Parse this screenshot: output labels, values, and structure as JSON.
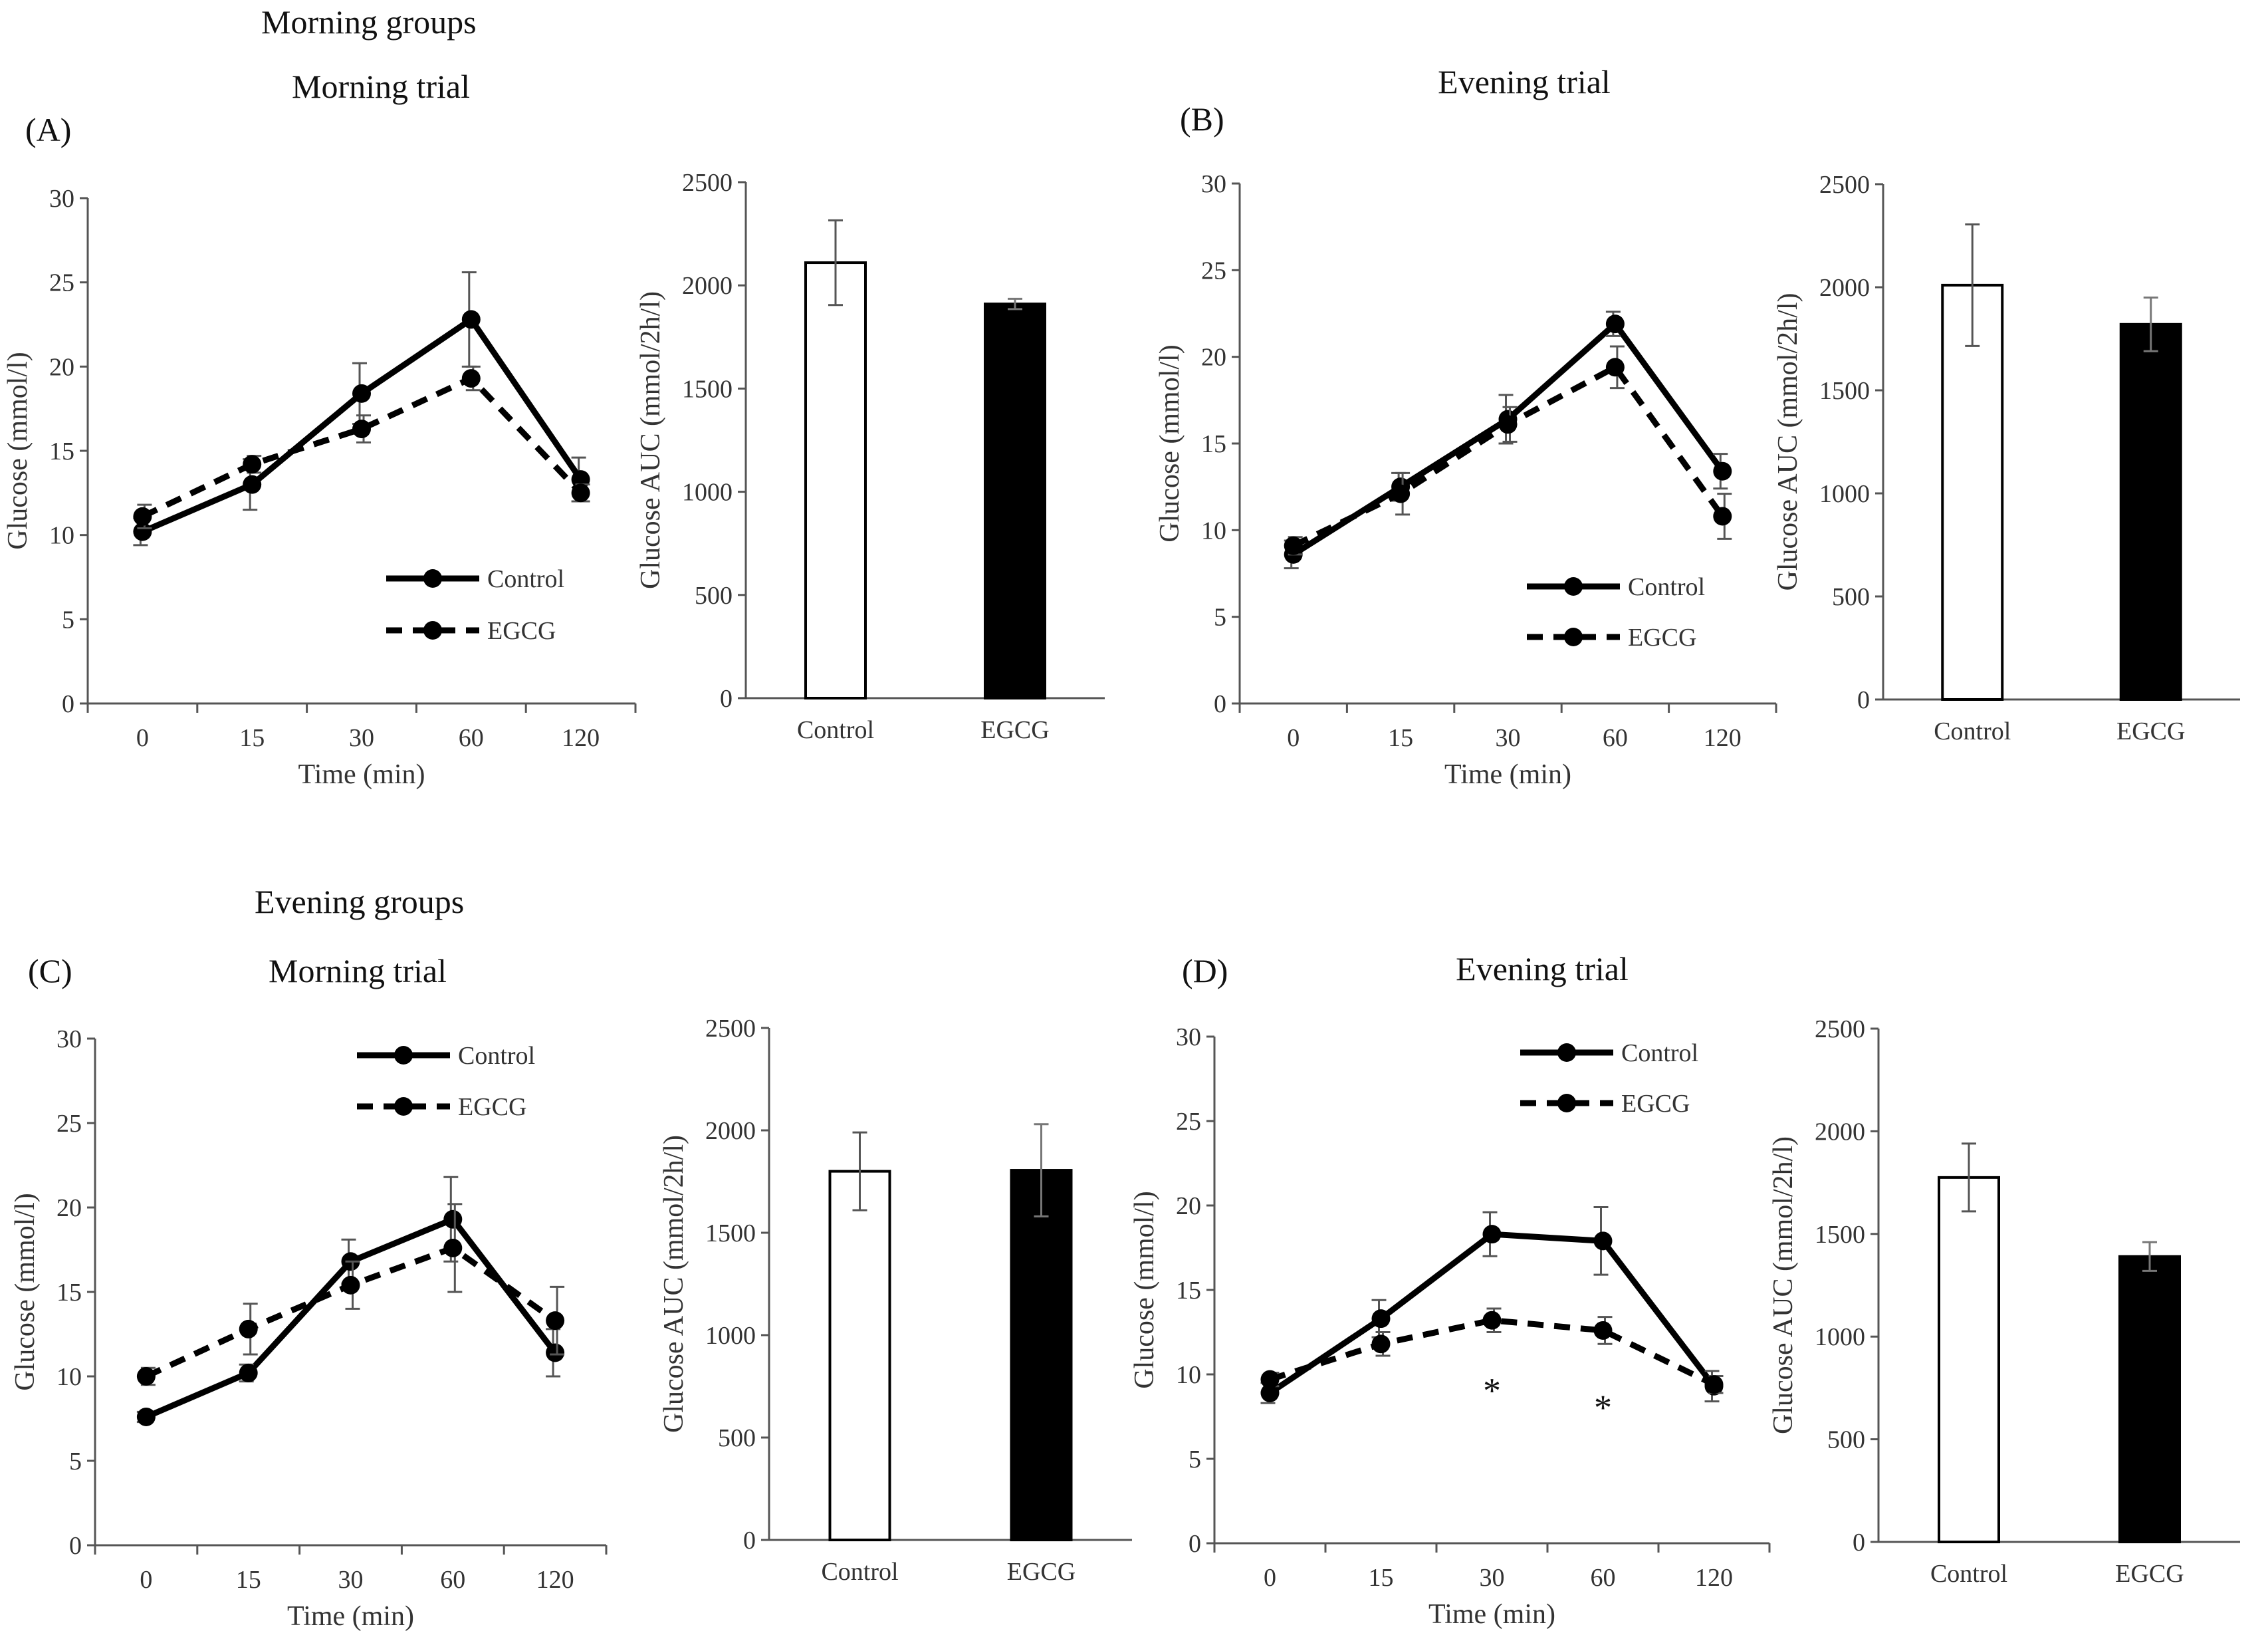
{
  "headings": {
    "morning_groups": "Morning groups",
    "evening_groups": "Evening groups"
  },
  "chart_data": [
    {
      "panel": "A",
      "label": "(A)",
      "title": "Morning trial",
      "line": {
        "type": "line",
        "categories": [
          "0",
          "15",
          "30",
          "60",
          "120"
        ],
        "xlabel": "Time (min)",
        "ylabel": "Glucose (mmol/l)",
        "ylim": [
          0,
          30
        ],
        "yticks": [
          0,
          5,
          10,
          15,
          20,
          25,
          30
        ],
        "legend_position": "bottom-right",
        "series": [
          {
            "name": "Control",
            "style": "solid",
            "values": [
              10.2,
              13.0,
              18.4,
              22.8,
              13.3
            ],
            "errors": [
              0.8,
              1.5,
              1.8,
              2.8,
              1.3
            ]
          },
          {
            "name": "EGCG",
            "style": "dashed",
            "values": [
              11.1,
              14.2,
              16.3,
              19.3,
              12.5
            ],
            "errors": [
              0.7,
              0.5,
              0.8,
              0.7,
              0.5
            ]
          }
        ],
        "annotations": []
      },
      "bar": {
        "type": "bar",
        "categories": [
          "Control",
          "EGCG"
        ],
        "values": [
          2110,
          1910
        ],
        "errors": [
          205,
          25
        ],
        "fills": [
          "#ffffff",
          "#000000"
        ],
        "ylabel": "Glucose AUC (mmol/2h/l)",
        "ylim": [
          0,
          2500
        ],
        "yticks": [
          0,
          500,
          1000,
          1500,
          2000,
          2500
        ]
      }
    },
    {
      "panel": "B",
      "label": "(B)",
      "title": "Evening trial",
      "line": {
        "type": "line",
        "categories": [
          "0",
          "15",
          "30",
          "60",
          "120"
        ],
        "xlabel": "Time (min)",
        "ylabel": "Glucose (mmol/l)",
        "ylim": [
          0,
          30
        ],
        "yticks": [
          0,
          5,
          10,
          15,
          20,
          25,
          30
        ],
        "legend_position": "bottom-right",
        "series": [
          {
            "name": "Control",
            "style": "solid",
            "values": [
              8.6,
              12.5,
              16.4,
              21.9,
              13.4
            ],
            "errors": [
              0.8,
              0.8,
              1.4,
              0.7,
              1.0
            ]
          },
          {
            "name": "EGCG",
            "style": "dashed",
            "values": [
              9.1,
              12.1,
              16.1,
              19.4,
              10.8
            ],
            "errors": [
              0.5,
              1.2,
              1.0,
              1.2,
              1.3
            ]
          }
        ],
        "annotations": []
      },
      "bar": {
        "type": "bar",
        "categories": [
          "Control",
          "EGCG"
        ],
        "values": [
          2010,
          1820
        ],
        "errors": [
          295,
          130
        ],
        "fills": [
          "#ffffff",
          "#000000"
        ],
        "ylabel": "Glucose AUC (mmol/2h/l)",
        "ylim": [
          0,
          2500
        ],
        "yticks": [
          0,
          500,
          1000,
          1500,
          2000,
          2500
        ]
      }
    },
    {
      "panel": "C",
      "label": "(C)",
      "title": "Morning trial",
      "line": {
        "type": "line",
        "categories": [
          "0",
          "15",
          "30",
          "60",
          "120"
        ],
        "xlabel": "Time (min)",
        "ylabel": "Glucose (mmol/l)",
        "ylim": [
          0,
          30
        ],
        "yticks": [
          0,
          5,
          10,
          15,
          20,
          25,
          30
        ],
        "legend_position": "top-right",
        "series": [
          {
            "name": "Control",
            "style": "solid",
            "values": [
              7.6,
              10.2,
              16.8,
              19.3,
              11.4
            ],
            "errors": [
              0.3,
              0.5,
              1.3,
              2.5,
              1.4
            ]
          },
          {
            "name": "EGCG",
            "style": "dashed",
            "values": [
              10.0,
              12.8,
              15.4,
              17.6,
              13.3
            ],
            "errors": [
              0.5,
              1.5,
              1.4,
              2.6,
              2.0
            ]
          }
        ],
        "annotations": []
      },
      "bar": {
        "type": "bar",
        "categories": [
          "Control",
          "EGCG"
        ],
        "values": [
          1800,
          1805
        ],
        "errors": [
          190,
          225
        ],
        "fills": [
          "#ffffff",
          "#000000"
        ],
        "ylabel": "Glucose AUC (mmol/2h/l)",
        "ylim": [
          0,
          2500
        ],
        "yticks": [
          0,
          500,
          1000,
          1500,
          2000,
          2500
        ]
      }
    },
    {
      "panel": "D",
      "label": "(D)",
      "title": "Evening trial",
      "line": {
        "type": "line",
        "categories": [
          "0",
          "15",
          "30",
          "60",
          "120"
        ],
        "xlabel": "Time (min)",
        "ylabel": "Glucose (mmol/l)",
        "ylim": [
          0,
          30
        ],
        "yticks": [
          0,
          5,
          10,
          15,
          20,
          25,
          30
        ],
        "legend_position": "top-right",
        "series": [
          {
            "name": "Control",
            "style": "solid",
            "values": [
              8.9,
              13.3,
              18.3,
              17.9,
              9.3
            ],
            "errors": [
              0.6,
              1.1,
              1.3,
              2.0,
              0.9
            ]
          },
          {
            "name": "EGCG",
            "style": "dashed",
            "values": [
              9.7,
              11.8,
              13.2,
              12.6,
              9.4
            ],
            "errors": [
              0.4,
              0.7,
              0.7,
              0.8,
              0.5
            ]
          }
        ],
        "annotations": [
          {
            "category": "30",
            "value": 9.5,
            "text": "*"
          },
          {
            "category": "60",
            "value": 8.5,
            "text": "*"
          }
        ]
      },
      "bar": {
        "type": "bar",
        "categories": [
          "Control",
          "EGCG"
        ],
        "values": [
          1775,
          1390
        ],
        "errors": [
          165,
          70
        ],
        "fills": [
          "#ffffff",
          "#000000"
        ],
        "ylabel": "Glucose AUC (mmol/2h/l)",
        "ylim": [
          0,
          2500
        ],
        "yticks": [
          0,
          500,
          1000,
          1500,
          2000,
          2500
        ]
      }
    }
  ]
}
